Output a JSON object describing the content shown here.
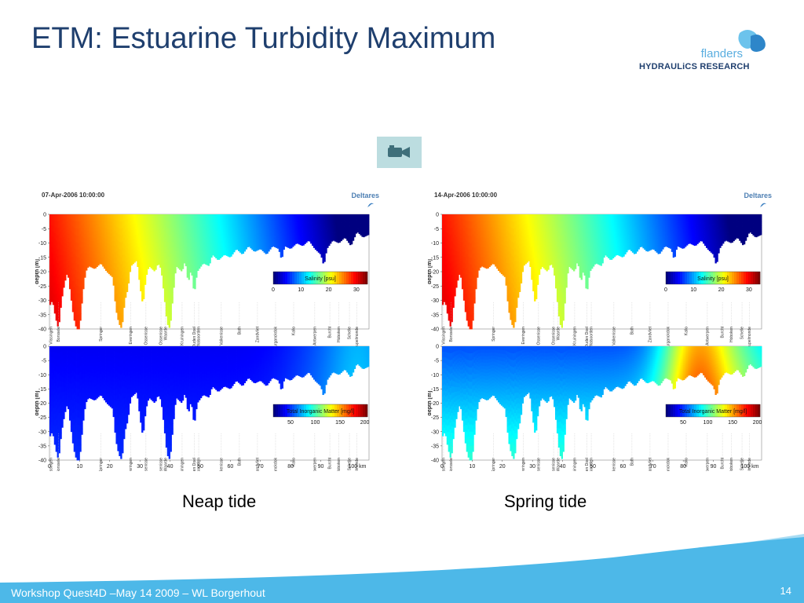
{
  "slide": {
    "title": "ETM: Estuarine Turbidity Maximum",
    "footer": "Workshop Quest4D –May 14 2009 – WL Borgerhout",
    "page_number": "14"
  },
  "logo": {
    "top": "flanders",
    "bottom": "HYDRAULiCS RESEARCH"
  },
  "video_button": {
    "icon": "video-camera-icon"
  },
  "captions": {
    "left": "Neap tide",
    "right": "Spring tide"
  },
  "panels": [
    {
      "id": "neap",
      "timestamp": "07-Apr-2006 10:00:00",
      "brand": "Deltares",
      "ylabel": "depth [m]",
      "yticks": [
        "0",
        "-5",
        "-10",
        "-15",
        "-20",
        "-25",
        "-30",
        "-35",
        "-40"
      ],
      "xticks": [
        "0",
        "10",
        "20",
        "30",
        "40",
        "50",
        "60",
        "70",
        "80",
        "90",
        "100 km"
      ],
      "stations": [
        "Vlissingen",
        "Borssele",
        "Springer",
        "Everingen",
        "Ossenisse",
        "Schaar van Ossenisse",
        "Waarde",
        "Kruiningen",
        "Schaar van Ouden Doel",
        "Walsoorden",
        "Platen van Valkenisse",
        "Bath",
        "Zandvliet",
        "Deurganckdok",
        "Kallo",
        "Antwerpen",
        "Burcht",
        "Hoboken",
        "Schelle",
        "Rupelmonde"
      ],
      "salinity_bar": {
        "title": "Salinity [psu]",
        "ticks": [
          "0",
          "10",
          "20",
          "30"
        ]
      },
      "tim_bar": {
        "title": "Total Inorganic Matter [mg/l]",
        "ticks": [
          "50",
          "100",
          "150",
          "200"
        ]
      }
    },
    {
      "id": "spring",
      "timestamp": "14-Apr-2006 10:00:00",
      "brand": "Deltares",
      "ylabel": "depth [m]",
      "yticks": [
        "0",
        "-5",
        "-10",
        "-15",
        "-20",
        "-25",
        "-30",
        "-35",
        "-40"
      ],
      "xticks": [
        "0",
        "10",
        "20",
        "30",
        "40",
        "50",
        "60",
        "70",
        "80",
        "90",
        "100 km"
      ],
      "stations": [
        "Vlissingen",
        "Borssele",
        "Springer",
        "Everingen",
        "Ossenisse",
        "Schaar van Ossenisse",
        "Waarde",
        "Kruiningen",
        "Schaar van Ouden Doel",
        "Walsoorden",
        "Platen van Valkenisse",
        "Bath",
        "Zandvliet",
        "Deurganckdok",
        "Kallo",
        "Antwerpen",
        "Burcht",
        "Hoboken",
        "Schelle",
        "Rupelmonde"
      ],
      "salinity_bar": {
        "title": "Salinity [psu]",
        "ticks": [
          "0",
          "10",
          "20",
          "30"
        ]
      },
      "tim_bar": {
        "title": "Total Inorganic Matter [mg/l]",
        "ticks": [
          "50",
          "100",
          "150",
          "200"
        ]
      }
    }
  ],
  "colors": {
    "title": "#1f3f6e",
    "footer_wave": "#4db8e8",
    "footer_wave_light": "#a9dcf3"
  }
}
